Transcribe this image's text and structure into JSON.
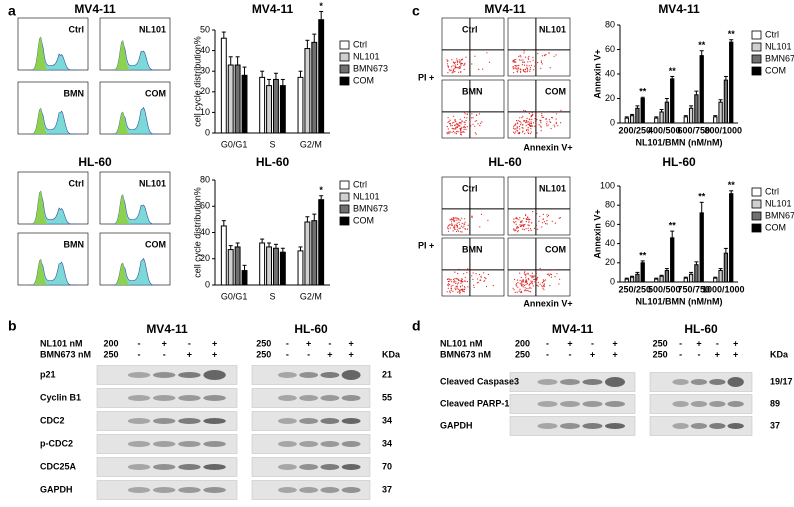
{
  "panel_labels": [
    "a",
    "b",
    "c",
    "d"
  ],
  "cell_cycle_plots": {
    "titles": [
      "MV4-11",
      "HL-60"
    ],
    "samples": [
      "Ctrl",
      "NL101",
      "BMN",
      "COM"
    ]
  },
  "apoptosis_plots": {
    "titles": [
      "MV4-11",
      "HL-60"
    ],
    "samples": [
      "Ctrl",
      "NL101",
      "BMN",
      "COM"
    ],
    "y_label": "PI +",
    "x_label": "Annexin V+"
  },
  "chart_data": [
    {
      "type": "bar",
      "title": "MV4-11",
      "y_label": "cell cycle distribution%",
      "categories": [
        "G0/G1",
        "S",
        "G2/M"
      ],
      "series": [
        {
          "name": "Ctrl",
          "color": "#ffffff",
          "values": [
            46,
            27,
            27
          ],
          "errors": [
            3,
            3,
            3
          ]
        },
        {
          "name": "NL101",
          "color": "#d0d0d0",
          "values": [
            33,
            23,
            41
          ],
          "errors": [
            4,
            3,
            4
          ]
        },
        {
          "name": "BMN673",
          "color": "#707070",
          "values": [
            33,
            26,
            44
          ],
          "errors": [
            4,
            3,
            4
          ]
        },
        {
          "name": "COM",
          "color": "#000000",
          "values": [
            28,
            23,
            55
          ],
          "errors": [
            4,
            3,
            4
          ],
          "markers": [
            null,
            null,
            "*"
          ]
        }
      ],
      "ylim": [
        0,
        50
      ],
      "yticks": [
        0,
        10,
        20,
        30,
        40,
        50
      ]
    },
    {
      "type": "bar",
      "title": "HL-60",
      "y_label": "cell cycle distribution%",
      "categories": [
        "G0/G1",
        "S",
        "G2/M"
      ],
      "series": [
        {
          "name": "Ctrl",
          "color": "#ffffff",
          "values": [
            45,
            32,
            26
          ],
          "errors": [
            4,
            3,
            3
          ]
        },
        {
          "name": "NL101",
          "color": "#d0d0d0",
          "values": [
            27,
            29,
            48
          ],
          "errors": [
            3,
            3,
            4
          ]
        },
        {
          "name": "BMN673",
          "color": "#707070",
          "values": [
            29,
            28,
            49
          ],
          "errors": [
            3,
            3,
            5
          ]
        },
        {
          "name": "COM",
          "color": "#000000",
          "values": [
            11,
            25,
            65
          ],
          "errors": [
            4,
            3,
            3
          ],
          "markers": [
            null,
            null,
            "*"
          ]
        }
      ],
      "ylim": [
        0,
        80
      ],
      "yticks": [
        0,
        20,
        40,
        60,
        80
      ]
    },
    {
      "type": "bar",
      "title": "MV4-11",
      "y_label": "Annexin V+",
      "x_label": "NL101/BMN (nM/nM)",
      "categories": [
        "200/250",
        "400/500",
        "600/750",
        "800/1000"
      ],
      "series": [
        {
          "name": "Ctrl",
          "color": "#ffffff",
          "values": [
            4,
            4,
            5,
            5
          ],
          "errors": [
            1,
            1,
            1,
            1
          ]
        },
        {
          "name": "NL101",
          "color": "#d0d0d0",
          "values": [
            6,
            9,
            12,
            17
          ],
          "errors": [
            1,
            2,
            2,
            2
          ]
        },
        {
          "name": "BMN673",
          "color": "#707070",
          "values": [
            12,
            17,
            23,
            35
          ],
          "errors": [
            2,
            3,
            3,
            3
          ]
        },
        {
          "name": "COM",
          "color": "#000000",
          "values": [
            20,
            36,
            55,
            66
          ],
          "errors": [
            1,
            2,
            4,
            2
          ],
          "markers": [
            "**",
            "**",
            "**",
            "**"
          ]
        }
      ],
      "ylim": [
        0,
        80
      ],
      "yticks": [
        0,
        20,
        40,
        60,
        80
      ]
    },
    {
      "type": "bar",
      "title": "HL-60",
      "y_label": "Annexin V+",
      "x_label": "NL101/BMN (nM/nM)",
      "categories": [
        "250/250",
        "500/500",
        "750/750",
        "1000/1000"
      ],
      "series": [
        {
          "name": "Ctrl",
          "color": "#ffffff",
          "values": [
            3,
            3,
            4,
            4
          ],
          "errors": [
            1,
            1,
            1,
            1
          ]
        },
        {
          "name": "NL101",
          "color": "#d0d0d0",
          "values": [
            5,
            6,
            8,
            12
          ],
          "errors": [
            1,
            1,
            2,
            2
          ]
        },
        {
          "name": "BMN673",
          "color": "#707070",
          "values": [
            8,
            12,
            18,
            30
          ],
          "errors": [
            2,
            2,
            3,
            5
          ]
        },
        {
          "name": "COM",
          "color": "#000000",
          "values": [
            20,
            46,
            72,
            92
          ],
          "errors": [
            2,
            7,
            11,
            3
          ],
          "markers": [
            "**",
            "**",
            "**",
            "**"
          ]
        }
      ],
      "ylim": [
        0,
        100
      ],
      "yticks": [
        0,
        20,
        40,
        60,
        80,
        100
      ]
    }
  ],
  "blot_b": {
    "treatments": [
      "NL101 nM",
      "BMN673 nM"
    ],
    "signs": [
      [
        "-",
        "+",
        "-",
        "+"
      ],
      [
        "-",
        "-",
        "+",
        "+"
      ]
    ],
    "groups": [
      {
        "title": "MV4-11",
        "doses": [
          200,
          250
        ]
      },
      {
        "title": "HL-60",
        "doses": [
          250,
          250
        ]
      }
    ],
    "unit": "KDa",
    "proteins": [
      {
        "name": "p21",
        "kda": 21
      },
      {
        "name": "Cyclin B1",
        "kda": 55
      },
      {
        "name": "CDC2",
        "kda": 34
      },
      {
        "name": "p-CDC2",
        "kda": 34
      },
      {
        "name": "CDC25A",
        "kda": 70
      },
      {
        "name": "GAPDH",
        "kda": 37
      }
    ]
  },
  "blot_d": {
    "treatments": [
      "NL101 nM",
      "BMN673 nM"
    ],
    "signs": [
      [
        "-",
        "+",
        "-",
        "+"
      ],
      [
        "-",
        "-",
        "+",
        "+"
      ]
    ],
    "groups": [
      {
        "title": "MV4-11",
        "doses": [
          200,
          250
        ]
      },
      {
        "title": "HL-60",
        "doses": [
          250,
          250
        ]
      }
    ],
    "unit": "KDa",
    "proteins": [
      {
        "name": "Cleaved Caspase3",
        "kda": "19/17"
      },
      {
        "name": "Cleaved PARP-1",
        "kda": 89
      },
      {
        "name": "GAPDH",
        "kda": 37
      }
    ]
  }
}
